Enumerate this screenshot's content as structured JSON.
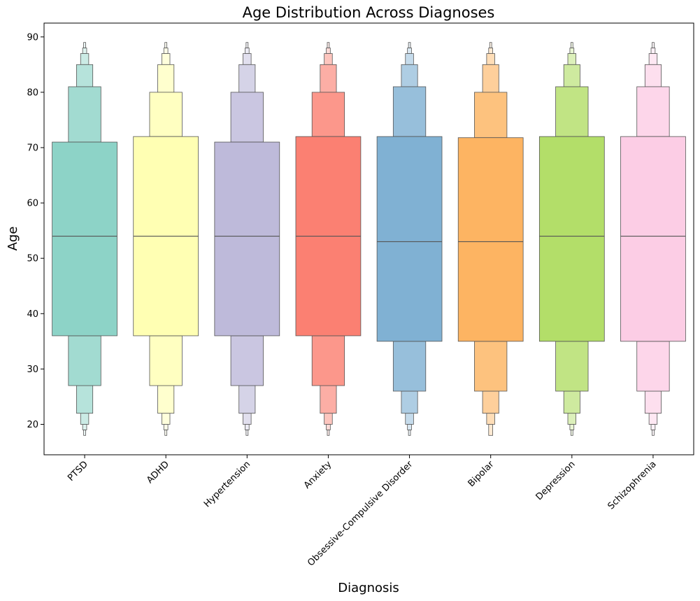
{
  "chart_data": {
    "type": "boxen",
    "title": "Age Distribution Across Diagnoses",
    "xlabel": "Diagnosis",
    "ylabel": "Age",
    "ylim": [
      14.5,
      92.5
    ],
    "yticks": [
      20,
      30,
      40,
      50,
      60,
      70,
      80,
      90
    ],
    "grid": false,
    "categories": [
      "PTSD",
      "ADHD",
      "Hypertension",
      "Anxiety",
      "Obsessive-Compulsive Disorder",
      "Bipolar",
      "Depression",
      "Schizophrenia"
    ],
    "colors": [
      "#8dd3c7",
      "#ffffb3",
      "#bebada",
      "#fb8072",
      "#80b1d3",
      "#fdb462",
      "#b3de69",
      "#fccde5"
    ],
    "series": [
      {
        "category": "PTSD",
        "median": 54,
        "levels": [
          [
            36,
            71
          ],
          [
            27,
            81
          ],
          [
            22,
            85
          ],
          [
            20,
            87
          ],
          [
            19,
            88
          ],
          [
            18,
            89
          ]
        ]
      },
      {
        "category": "ADHD",
        "median": 54,
        "levels": [
          [
            36,
            72
          ],
          [
            27,
            80
          ],
          [
            22,
            85
          ],
          [
            20,
            87
          ],
          [
            19,
            88
          ],
          [
            18,
            89
          ]
        ]
      },
      {
        "category": "Hypertension",
        "median": 54,
        "levels": [
          [
            36,
            71
          ],
          [
            27,
            80
          ],
          [
            22,
            85
          ],
          [
            20,
            87
          ],
          [
            19,
            88
          ],
          [
            18,
            89
          ]
        ]
      },
      {
        "category": "Anxiety",
        "median": 54,
        "levels": [
          [
            36,
            72
          ],
          [
            27,
            80
          ],
          [
            22,
            85
          ],
          [
            20,
            87
          ],
          [
            19,
            88
          ],
          [
            18,
            89
          ]
        ]
      },
      {
        "category": "Obsessive-Compulsive Disorder",
        "median": 53,
        "levels": [
          [
            35,
            72
          ],
          [
            26,
            81
          ],
          [
            22,
            85
          ],
          [
            20,
            87
          ],
          [
            19,
            88
          ],
          [
            18,
            89
          ]
        ]
      },
      {
        "category": "Bipolar",
        "median": 53,
        "levels": [
          [
            35,
            71.8
          ],
          [
            26,
            80
          ],
          [
            22,
            85
          ],
          [
            20,
            87
          ],
          [
            18,
            88
          ],
          [
            18,
            89
          ]
        ]
      },
      {
        "category": "Depression",
        "median": 54,
        "levels": [
          [
            35,
            72
          ],
          [
            26,
            81
          ],
          [
            22,
            85
          ],
          [
            20,
            87
          ],
          [
            19,
            88
          ],
          [
            18,
            89
          ]
        ]
      },
      {
        "category": "Schizophrenia",
        "median": 54,
        "levels": [
          [
            35,
            72
          ],
          [
            26,
            81
          ],
          [
            22,
            85
          ],
          [
            20,
            87
          ],
          [
            19,
            88
          ],
          [
            18,
            89
          ]
        ]
      }
    ]
  }
}
